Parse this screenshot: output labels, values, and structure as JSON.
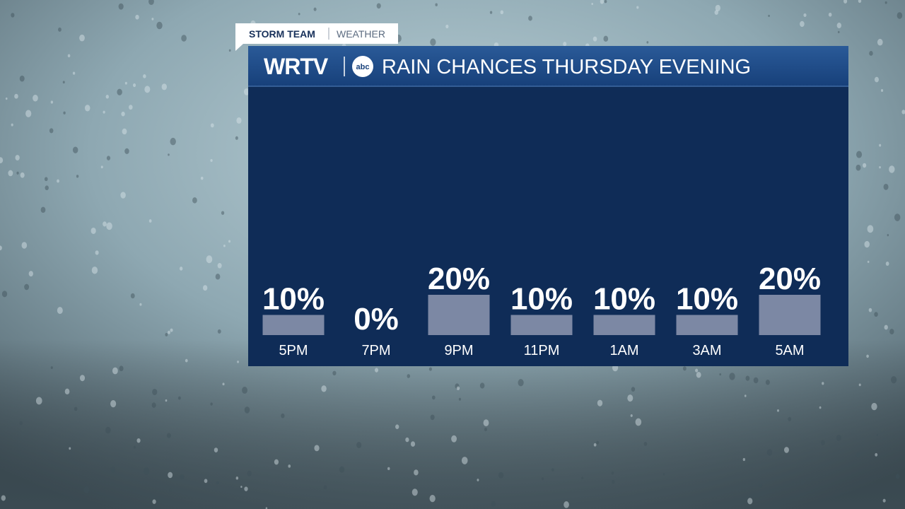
{
  "branding": {
    "tag": "STORM TEAM",
    "section": "WEATHER",
    "station": "WRTV",
    "network": "abc"
  },
  "chart_data": {
    "type": "bar",
    "title": "RAIN CHANCES THURSDAY EVENING",
    "categories": [
      "5PM",
      "7PM",
      "9PM",
      "11PM",
      "1AM",
      "3AM",
      "5AM"
    ],
    "values": [
      10,
      0,
      20,
      10,
      10,
      10,
      20
    ],
    "value_labels": [
      "10%",
      "0%",
      "20%",
      "10%",
      "10%",
      "10%",
      "20%"
    ],
    "color": "#7c88a4"
  }
}
